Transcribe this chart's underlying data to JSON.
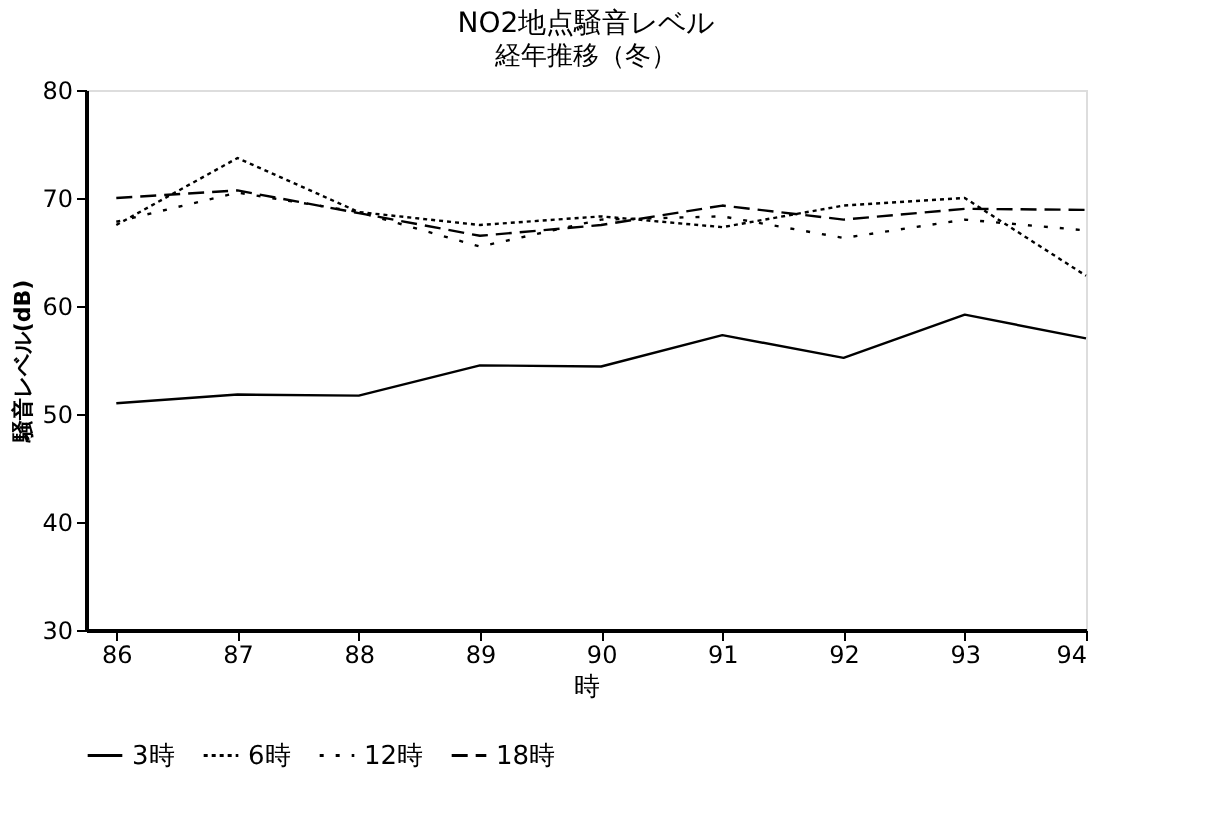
{
  "chart_data": {
    "type": "line",
    "title": "NO2地点騒音レベル",
    "subtitle": "経年推移（冬）",
    "xlabel": "時",
    "ylabel": "騒音レベル(dB)",
    "x": [
      86,
      87,
      88,
      89,
      90,
      91,
      92,
      93,
      94
    ],
    "xlim": [
      85.75,
      94
    ],
    "xticks": [
      86,
      87,
      88,
      89,
      90,
      91,
      92,
      93,
      94
    ],
    "ylim": [
      30,
      80
    ],
    "yticks": [
      30,
      40,
      50,
      60,
      70,
      80
    ],
    "grid": false,
    "legend": "bottom",
    "marker": "none",
    "series": [
      {
        "name": "3時",
        "color": "#000000",
        "line_style": "solid",
        "values": [
          51.0,
          51.8,
          51.7,
          54.5,
          54.4,
          57.3,
          55.2,
          59.2,
          57.0
        ]
      },
      {
        "name": "6時",
        "color": "#000000",
        "line_style": "dotted",
        "values": [
          67.5,
          73.7,
          68.7,
          67.5,
          68.3,
          67.3,
          69.3,
          70.0,
          62.8
        ]
      },
      {
        "name": "12時",
        "color": "#000000",
        "line_style": "sparse_dotted",
        "values": [
          67.8,
          70.5,
          68.7,
          65.5,
          68.0,
          68.3,
          66.3,
          68.0,
          67.0
        ]
      },
      {
        "name": "18時",
        "color": "#000000",
        "line_style": "dashed",
        "values": [
          70.0,
          70.7,
          68.6,
          66.5,
          67.5,
          69.3,
          68.0,
          69.0,
          68.9
        ]
      }
    ]
  }
}
